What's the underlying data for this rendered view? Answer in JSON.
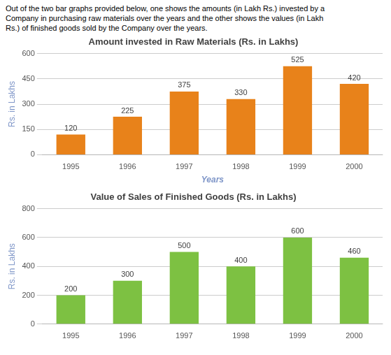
{
  "annotations": [
    "Out of the two bar graphs provided below, one shows the amounts (in Lakh Rs.) invested by a",
    "Company in purchasing raw materials over the years and the other shows the values (in Lakh",
    "Rs.) of finished goods sold by the Company over the years."
  ],
  "chart_data": [
    {
      "type": "bar",
      "title": "Amount invested in Raw Materials (Rs. in Lakhs)",
      "categories": [
        "1995",
        "1996",
        "1997",
        "1998",
        "1999",
        "2000"
      ],
      "values": [
        120,
        225,
        375,
        330,
        525,
        420
      ],
      "color": "#E8821A",
      "ylabel": "Rs. in Lakhs",
      "xlabel": "Years",
      "ylim": [
        0,
        600
      ],
      "yticks": [
        0,
        150,
        300,
        450,
        600
      ],
      "grid": true,
      "data_labels": true
    },
    {
      "type": "bar",
      "title": "Value of Sales of Finished Goods (Rs. in Lakhs)",
      "categories": [
        "1995",
        "1996",
        "1997",
        "1998",
        "1999",
        "2000"
      ],
      "values": [
        200,
        300,
        500,
        400,
        600,
        460
      ],
      "color": "#7DC142",
      "ylabel": "Rs. in Lakhs",
      "ylim": [
        0,
        800
      ],
      "yticks": [
        0,
        200,
        400,
        600,
        800
      ],
      "grid": true,
      "data_labels": true
    }
  ]
}
